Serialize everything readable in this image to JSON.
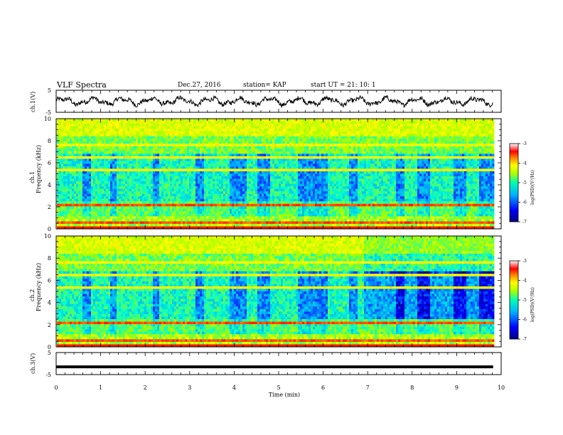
{
  "header": {
    "title": "VLF Spectra",
    "date": "Dec.27, 2016",
    "station": "station= KAP",
    "start": "start  UT =   21: 10: 1"
  },
  "chart_data": [
    {
      "type": "line",
      "name": "ch1-waveform",
      "ylabel": "ch.1(V)",
      "ylim": [
        -5,
        5
      ],
      "yticks": [
        "5",
        "-5"
      ],
      "xlim": [
        0,
        10
      ]
    },
    {
      "type": "heatmap",
      "name": "ch1-spectrogram",
      "ylabel_line1": "ch.1",
      "ylabel_line2": "Frequency (kHz)",
      "ylim": [
        0,
        10
      ],
      "yticks": [
        "0",
        "2",
        "4",
        "6",
        "8",
        "10"
      ],
      "xlim": [
        0,
        9.8
      ],
      "colorbar": {
        "label": "log(PSD)(V²/Hz)",
        "range": [
          -7,
          -3
        ],
        "ticks": [
          "-3",
          "-4",
          "-5",
          "-6",
          "-7"
        ]
      }
    },
    {
      "type": "heatmap",
      "name": "ch2-spectrogram",
      "ylabel_line1": "ch.2",
      "ylabel_line2": "Frequency (kHz)",
      "ylim": [
        0,
        10
      ],
      "yticks": [
        "0",
        "2",
        "4",
        "6",
        "8",
        "10"
      ],
      "xlim": [
        0,
        9.8
      ],
      "colorbar": {
        "label": "log(PSD)(V²/Hz)",
        "range": [
          -7,
          -3
        ],
        "ticks": [
          "-3",
          "-4",
          "-5",
          "-6",
          "-7"
        ]
      }
    },
    {
      "type": "line",
      "name": "ch3-waveform",
      "ylabel": "ch.3(V)",
      "ylim": [
        -5,
        5
      ],
      "yticks": [
        "5",
        "-5"
      ],
      "constant_value": -1.5,
      "xlim": [
        0,
        10
      ]
    }
  ],
  "xaxis": {
    "label": "Time  (min)",
    "ticks": [
      "0",
      "1",
      "2",
      "3",
      "4",
      "5",
      "6",
      "7",
      "8",
      "9",
      "10"
    ],
    "range": [
      0,
      10
    ]
  },
  "colors": {
    "colormap": [
      "#000080",
      "#0000ff",
      "#00a0ff",
      "#00ffd0",
      "#a0ff00",
      "#ffff00",
      "#ff8000",
      "#ff0000",
      "#ffffff"
    ]
  }
}
